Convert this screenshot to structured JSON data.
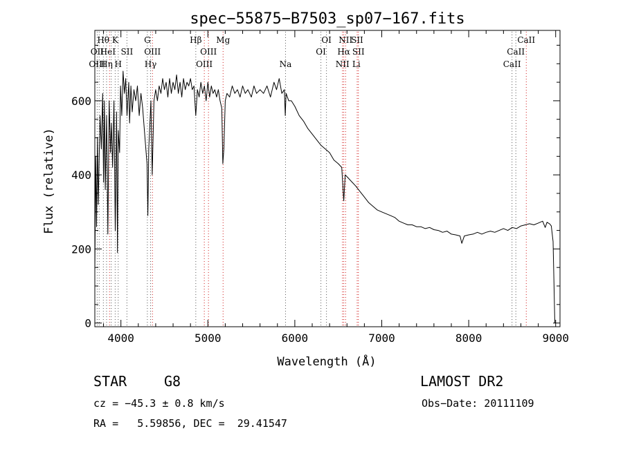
{
  "chart_data": {
    "type": "line",
    "title": "spec−55875−B7503_sp07−167.fits",
    "xlabel": "Wavelength (Å)",
    "ylabel": "Flux (relative)",
    "xlim": [
      3700,
      9050
    ],
    "ylim": [
      -10,
      790
    ],
    "xticks": [
      4000,
      5000,
      6000,
      7000,
      8000,
      9000
    ],
    "yticks": [
      0,
      200,
      400,
      600
    ],
    "grid": false,
    "series": [
      {
        "color": "#000000",
        "points": [
          [
            3700,
            140
          ],
          [
            3710,
            450
          ],
          [
            3720,
            260
          ],
          [
            3730,
            500
          ],
          [
            3740,
            320
          ],
          [
            3760,
            560
          ],
          [
            3775,
            470
          ],
          [
            3790,
            620
          ],
          [
            3800,
            380
          ],
          [
            3810,
            600
          ],
          [
            3820,
            360
          ],
          [
            3835,
            560
          ],
          [
            3850,
            240
          ],
          [
            3865,
            600
          ],
          [
            3880,
            460
          ],
          [
            3890,
            540
          ],
          [
            3905,
            420
          ],
          [
            3920,
            600
          ],
          [
            3935,
            250
          ],
          [
            3950,
            570
          ],
          [
            3960,
            190
          ],
          [
            3970,
            520
          ],
          [
            3985,
            460
          ],
          [
            3995,
            640
          ],
          [
            4010,
            560
          ],
          [
            4025,
            680
          ],
          [
            4040,
            620
          ],
          [
            4055,
            660
          ],
          [
            4070,
            560
          ],
          [
            4090,
            650
          ],
          [
            4100,
            540
          ],
          [
            4115,
            640
          ],
          [
            4130,
            570
          ],
          [
            4150,
            630
          ],
          [
            4170,
            600
          ],
          [
            4190,
            640
          ],
          [
            4210,
            560
          ],
          [
            4230,
            620
          ],
          [
            4250,
            580
          ],
          [
            4270,
            520
          ],
          [
            4290,
            460
          ],
          [
            4300,
            430
          ],
          [
            4310,
            290
          ],
          [
            4320,
            470
          ],
          [
            4330,
            520
          ],
          [
            4345,
            600
          ],
          [
            4360,
            400
          ],
          [
            4380,
            600
          ],
          [
            4400,
            630
          ],
          [
            4420,
            600
          ],
          [
            4440,
            640
          ],
          [
            4460,
            620
          ],
          [
            4480,
            660
          ],
          [
            4500,
            630
          ],
          [
            4520,
            650
          ],
          [
            4540,
            610
          ],
          [
            4560,
            660
          ],
          [
            4580,
            620
          ],
          [
            4600,
            650
          ],
          [
            4620,
            630
          ],
          [
            4640,
            670
          ],
          [
            4660,
            620
          ],
          [
            4680,
            650
          ],
          [
            4700,
            610
          ],
          [
            4720,
            660
          ],
          [
            4740,
            630
          ],
          [
            4760,
            650
          ],
          [
            4780,
            640
          ],
          [
            4800,
            660
          ],
          [
            4820,
            630
          ],
          [
            4840,
            640
          ],
          [
            4861,
            560
          ],
          [
            4880,
            630
          ],
          [
            4900,
            610
          ],
          [
            4920,
            650
          ],
          [
            4940,
            620
          ],
          [
            4960,
            640
          ],
          [
            4980,
            600
          ],
          [
            5000,
            650
          ],
          [
            5020,
            610
          ],
          [
            5040,
            640
          ],
          [
            5060,
            620
          ],
          [
            5080,
            630
          ],
          [
            5100,
            610
          ],
          [
            5120,
            630
          ],
          [
            5140,
            600
          ],
          [
            5160,
            580
          ],
          [
            5172,
            430
          ],
          [
            5184,
            470
          ],
          [
            5200,
            600
          ],
          [
            5220,
            620
          ],
          [
            5250,
            610
          ],
          [
            5280,
            640
          ],
          [
            5310,
            620
          ],
          [
            5340,
            630
          ],
          [
            5370,
            610
          ],
          [
            5400,
            640
          ],
          [
            5430,
            620
          ],
          [
            5460,
            630
          ],
          [
            5500,
            610
          ],
          [
            5530,
            640
          ],
          [
            5560,
            620
          ],
          [
            5600,
            630
          ],
          [
            5640,
            620
          ],
          [
            5680,
            640
          ],
          [
            5720,
            610
          ],
          [
            5760,
            650
          ],
          [
            5790,
            630
          ],
          [
            5820,
            660
          ],
          [
            5850,
            620
          ],
          [
            5880,
            630
          ],
          [
            5890,
            560
          ],
          [
            5900,
            620
          ],
          [
            5930,
            600
          ],
          [
            5960,
            600
          ],
          [
            6000,
            585
          ],
          [
            6050,
            560
          ],
          [
            6100,
            545
          ],
          [
            6150,
            525
          ],
          [
            6200,
            510
          ],
          [
            6250,
            495
          ],
          [
            6300,
            480
          ],
          [
            6350,
            470
          ],
          [
            6400,
            460
          ],
          [
            6450,
            440
          ],
          [
            6500,
            430
          ],
          [
            6540,
            420
          ],
          [
            6563,
            330
          ],
          [
            6580,
            400
          ],
          [
            6620,
            390
          ],
          [
            6660,
            380
          ],
          [
            6700,
            370
          ],
          [
            6750,
            355
          ],
          [
            6800,
            340
          ],
          [
            6850,
            325
          ],
          [
            6900,
            315
          ],
          [
            6950,
            305
          ],
          [
            7000,
            300
          ],
          [
            7050,
            295
          ],
          [
            7100,
            290
          ],
          [
            7150,
            285
          ],
          [
            7200,
            275
          ],
          [
            7250,
            270
          ],
          [
            7300,
            265
          ],
          [
            7350,
            265
          ],
          [
            7400,
            260
          ],
          [
            7450,
            260
          ],
          [
            7500,
            255
          ],
          [
            7550,
            258
          ],
          [
            7600,
            252
          ],
          [
            7650,
            250
          ],
          [
            7700,
            245
          ],
          [
            7750,
            248
          ],
          [
            7800,
            240
          ],
          [
            7850,
            238
          ],
          [
            7900,
            235
          ],
          [
            7920,
            215
          ],
          [
            7950,
            235
          ],
          [
            8000,
            238
          ],
          [
            8050,
            240
          ],
          [
            8100,
            245
          ],
          [
            8150,
            240
          ],
          [
            8200,
            245
          ],
          [
            8250,
            248
          ],
          [
            8300,
            245
          ],
          [
            8350,
            250
          ],
          [
            8400,
            255
          ],
          [
            8450,
            250
          ],
          [
            8500,
            258
          ],
          [
            8550,
            255
          ],
          [
            8600,
            262
          ],
          [
            8650,
            265
          ],
          [
            8700,
            268
          ],
          [
            8750,
            265
          ],
          [
            8800,
            270
          ],
          [
            8850,
            275
          ],
          [
            8880,
            258
          ],
          [
            8900,
            272
          ],
          [
            8930,
            268
          ],
          [
            8950,
            262
          ],
          [
            8970,
            220
          ],
          [
            8990,
            0
          ]
        ]
      }
    ],
    "lines": [
      {
        "wavelength": 3727,
        "style": "dotted-black"
      },
      {
        "wavelength": 3750,
        "style": "dotted-black"
      },
      {
        "wavelength": 3798,
        "style": "dotted-black"
      },
      {
        "wavelength": 3835,
        "style": "dotted-black"
      },
      {
        "wavelength": 3869,
        "style": "dotted-red"
      },
      {
        "wavelength": 3889,
        "style": "dotted-black"
      },
      {
        "wavelength": 3934,
        "style": "dotted-black"
      },
      {
        "wavelength": 3969,
        "style": "dotted-black"
      },
      {
        "wavelength": 4069,
        "style": "dotted-black"
      },
      {
        "wavelength": 4304,
        "style": "dotted-black"
      },
      {
        "wavelength": 4341,
        "style": "dotted-black"
      },
      {
        "wavelength": 4363,
        "style": "dotted-red"
      },
      {
        "wavelength": 4861,
        "style": "dotted-black"
      },
      {
        "wavelength": 4959,
        "style": "dotted-red"
      },
      {
        "wavelength": 5007,
        "style": "dotted-red"
      },
      {
        "wavelength": 5175,
        "style": "dotted-red"
      },
      {
        "wavelength": 5893,
        "style": "dotted-black"
      },
      {
        "wavelength": 6300,
        "style": "dotted-black"
      },
      {
        "wavelength": 6364,
        "style": "dotted-black"
      },
      {
        "wavelength": 6548,
        "style": "dotted-red"
      },
      {
        "wavelength": 6563,
        "style": "dotted-red"
      },
      {
        "wavelength": 6584,
        "style": "dotted-red"
      },
      {
        "wavelength": 6717,
        "style": "dotted-red"
      },
      {
        "wavelength": 6731,
        "style": "dotted-red"
      },
      {
        "wavelength": 8498,
        "style": "dotted-black"
      },
      {
        "wavelength": 8542,
        "style": "dotted-black"
      },
      {
        "wavelength": 8662,
        "style": "dotted-red"
      }
    ],
    "line_labels": [
      {
        "text": "Hθ",
        "wavelength": 3797,
        "row": 1
      },
      {
        "text": "K",
        "wavelength": 3934,
        "row": 1
      },
      {
        "text": "OII",
        "wavelength": 3727,
        "row": 2
      },
      {
        "text": "HeI",
        "wavelength": 3850,
        "row": 2
      },
      {
        "text": "SII",
        "wavelength": 4069,
        "row": 2
      },
      {
        "text": "OIII",
        "wavelength": 3727,
        "row": 3
      },
      {
        "text": "Hη",
        "wavelength": 3835,
        "row": 3
      },
      {
        "text": "H",
        "wavelength": 3969,
        "row": 3
      },
      {
        "text": "G",
        "wavelength": 4304,
        "row": 1
      },
      {
        "text": "OIII",
        "wavelength": 4363,
        "row": 2
      },
      {
        "text": "Hγ",
        "wavelength": 4341,
        "row": 3
      },
      {
        "text": "Hβ",
        "wavelength": 4861,
        "row": 1
      },
      {
        "text": "OIII",
        "wavelength": 5007,
        "row": 2
      },
      {
        "text": "OIII",
        "wavelength": 4959,
        "row": 3
      },
      {
        "text": "Mg",
        "wavelength": 5175,
        "row": 1
      },
      {
        "text": "Na",
        "wavelength": 5893,
        "row": 3
      },
      {
        "text": "OI",
        "wavelength": 6300,
        "row": 2
      },
      {
        "text": "OI",
        "wavelength": 6364,
        "row": 1
      },
      {
        "text": "NII",
        "wavelength": 6584,
        "row": 1
      },
      {
        "text": "SII",
        "wavelength": 6717,
        "row": 1
      },
      {
        "text": "Hα",
        "wavelength": 6563,
        "row": 2
      },
      {
        "text": "SII",
        "wavelength": 6731,
        "row": 2
      },
      {
        "text": "NII",
        "wavelength": 6548,
        "row": 3
      },
      {
        "text": "Li",
        "wavelength": 6708,
        "row": 3
      },
      {
        "text": "CaII",
        "wavelength": 8662,
        "row": 1
      },
      {
        "text": "CaII",
        "wavelength": 8542,
        "row": 2
      },
      {
        "text": "CaII",
        "wavelength": 8498,
        "row": 3
      }
    ]
  },
  "info": {
    "class_label": "STAR",
    "subclass": "G8",
    "survey": "LAMOST DR2",
    "cz_line": "cz = −45.3 ± 0.8 km/s",
    "obs_date_line": "Obs−Date: 20111109",
    "radec_line": "RA =   5.59856, DEC =  29.41547"
  }
}
